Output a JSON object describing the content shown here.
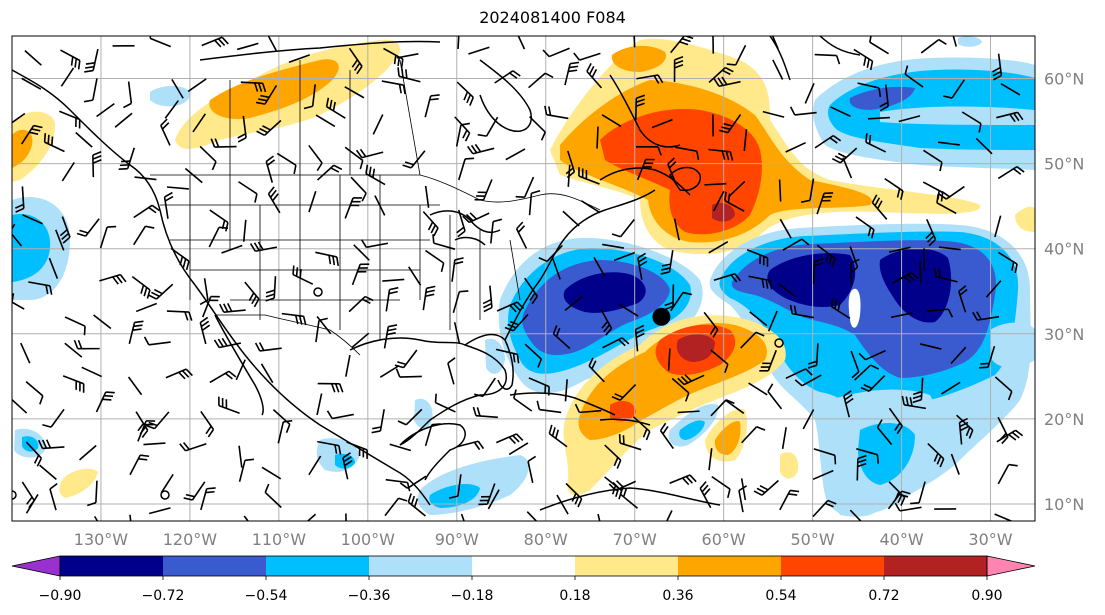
{
  "title": "2024081400 F084",
  "map": {
    "lon_range": [
      -140,
      -25
    ],
    "lat_range": [
      8,
      65
    ],
    "lat_ticks": [
      {
        "value": 60,
        "label": "60°N"
      },
      {
        "value": 50,
        "label": "50°N"
      },
      {
        "value": 40,
        "label": "40°N"
      },
      {
        "value": 30,
        "label": "30°N"
      },
      {
        "value": 20,
        "label": "20°N"
      },
      {
        "value": 10,
        "label": "10°N"
      }
    ],
    "lon_ticks": [
      {
        "value": -130,
        "label": "130°W"
      },
      {
        "value": -120,
        "label": "120°W"
      },
      {
        "value": -110,
        "label": "110°W"
      },
      {
        "value": -100,
        "label": "100°W"
      },
      {
        "value": -90,
        "label": "90°W"
      },
      {
        "value": -80,
        "label": "80°W"
      },
      {
        "value": -70,
        "label": "70°W"
      },
      {
        "value": -60,
        "label": "60°W"
      },
      {
        "value": -50,
        "label": "50°W"
      },
      {
        "value": -40,
        "label": "40°W"
      },
      {
        "value": -30,
        "label": "30°W"
      }
    ],
    "storm_marker": {
      "lon": -67,
      "lat": 32
    },
    "colors": {
      "neg_090": "#9b30d0",
      "neg_072": "#00008b",
      "neg_054": "#3a5bd0",
      "neg_036": "#00bfff",
      "neg_018": "#aee0fa",
      "pos_018": "#ffe98a",
      "pos_036": "#ffa500",
      "pos_054": "#ff4500",
      "pos_072": "#b22222",
      "pos_090": "#ff85b0",
      "grid": "#b0b0b0",
      "coast": "#000000"
    }
  },
  "colorbar": {
    "bins": [
      {
        "color": "#9b30d0",
        "range": "< -0.90"
      },
      {
        "color": "#00008b",
        "range": "-0.90 to -0.72"
      },
      {
        "color": "#3a5bd0",
        "range": "-0.72 to -0.54"
      },
      {
        "color": "#00bfff",
        "range": "-0.54 to -0.36"
      },
      {
        "color": "#aee0fa",
        "range": "-0.36 to -0.18"
      },
      {
        "color": "#ffffff",
        "range": "-0.18 to 0.18"
      },
      {
        "color": "#ffe98a",
        "range": "0.18 to 0.36"
      },
      {
        "color": "#ffa500",
        "range": "0.36 to 0.54"
      },
      {
        "color": "#ff4500",
        "range": "0.54 to 0.72"
      },
      {
        "color": "#b22222",
        "range": "0.72 to 0.90"
      },
      {
        "color": "#ff85b0",
        "range": "> 0.90"
      }
    ],
    "tick_labels": [
      "−0.90",
      "−0.72",
      "−0.54",
      "−0.36",
      "−0.18",
      "0.18",
      "0.36",
      "0.54",
      "0.72",
      "0.90"
    ]
  }
}
